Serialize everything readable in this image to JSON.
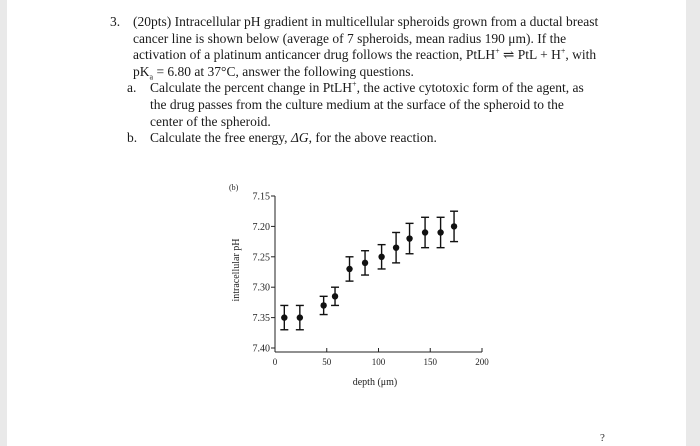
{
  "question": {
    "number": "3.",
    "lines": [
      "(20pts) Intracellular pH gradient in multicellular spheroids grown from a ductal breast",
      "cancer line is shown below (average of 7 spheroids, mean radius 190 μm). If the",
      "activation of a platinum anticancer drug follows the reaction, PtLH",
      "pK",
      " = 6.80 at 37°C, answer the following questions."
    ],
    "reaction": {
      "reactant": "PtLH",
      "reactant_charge": "+",
      "arrow": "⇌",
      "product1": "PtL",
      "plus": "+ H",
      "product2_charge": "+",
      "tail": ", with"
    },
    "pka_sub": "a",
    "sub_questions": [
      {
        "letter": "a.",
        "lines": [
          "Calculate the percent change in PtLH",
          ", the active cytotoxic form of the agent, as",
          "the drug passes from the culture medium at the surface of the spheroid to the",
          "center of the spheroid."
        ],
        "charge": "+"
      },
      {
        "letter": "b.",
        "text_before": "Calculate the free energy, ",
        "symbol": "ΔG",
        "text_after": ", for the above reaction."
      }
    ]
  },
  "chart_data": {
    "type": "scatter",
    "panel_label": "(b)",
    "xlabel": "depth (μm)",
    "ylabel": "intracellular pH",
    "x_ticks": [
      "0",
      "50",
      "100",
      "150",
      "200"
    ],
    "y_ticks": [
      "7.15",
      "7.20",
      "7.25",
      "7.30",
      "7.35",
      "7.40"
    ],
    "xlim": [
      0,
      200
    ],
    "ylim": [
      7.4,
      7.15
    ],
    "y_inverted": true,
    "points": [
      {
        "x": 9,
        "y": 7.35,
        "err": 0.02
      },
      {
        "x": 24,
        "y": 7.35,
        "err": 0.02
      },
      {
        "x": 47,
        "y": 7.33,
        "err": 0.015
      },
      {
        "x": 58,
        "y": 7.315,
        "err": 0.015
      },
      {
        "x": 72,
        "y": 7.27,
        "err": 0.02
      },
      {
        "x": 87,
        "y": 7.26,
        "err": 0.02
      },
      {
        "x": 103,
        "y": 7.25,
        "err": 0.02
      },
      {
        "x": 117,
        "y": 7.235,
        "err": 0.025
      },
      {
        "x": 130,
        "y": 7.22,
        "err": 0.025
      },
      {
        "x": 145,
        "y": 7.21,
        "err": 0.025
      },
      {
        "x": 160,
        "y": 7.21,
        "err": 0.025
      },
      {
        "x": 173,
        "y": 7.2,
        "err": 0.025
      }
    ]
  },
  "page_number": "?"
}
